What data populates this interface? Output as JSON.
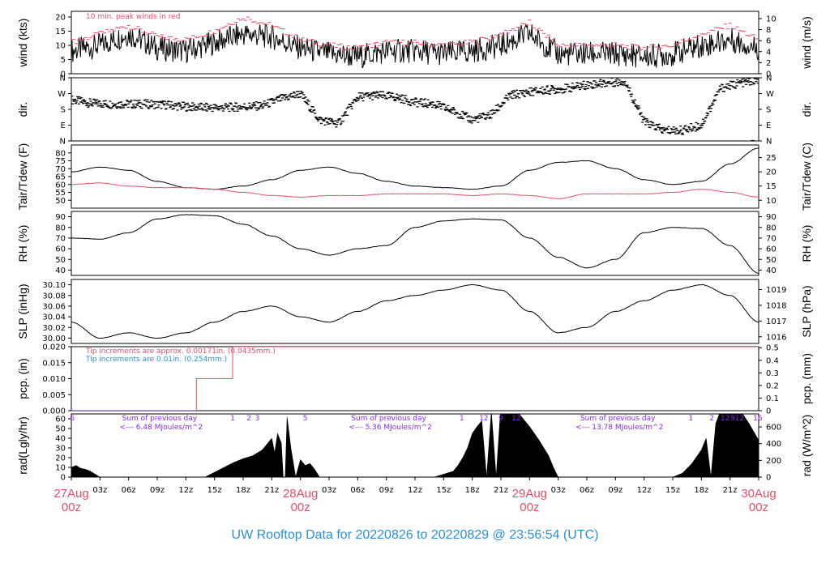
{
  "title": "UW Rooftop Data for 20220826  to  20220829 @ 23:56:54  (UTC)",
  "colors": {
    "title": "#2a8fd6",
    "date": "#e0506a",
    "red": "#e0506a",
    "purple": "#8a2be2",
    "blue": "#2a8fd6"
  },
  "time_axis": {
    "hour_ticks": [
      "03z",
      "06z",
      "09z",
      "12z",
      "15z",
      "18z",
      "21z"
    ],
    "days": [
      {
        "day": "27Aug",
        "hour": "00z",
        "t": 0
      },
      {
        "day": "28Aug",
        "hour": "00z",
        "t": 24
      },
      {
        "day": "29Aug",
        "hour": "00z",
        "t": 48
      },
      {
        "day": "30Aug",
        "hour": "00z",
        "t": 72
      }
    ]
  },
  "chart_data": [
    {
      "id": "wind",
      "type": "line",
      "ylabel": "wind (kts)",
      "y2label": "wind (m/s)",
      "ylim": [
        0,
        22
      ],
      "yticks": [
        0,
        5,
        10,
        15,
        20
      ],
      "y2ticks": [
        0,
        2,
        4,
        6,
        8,
        10
      ],
      "y2scale": 0.5144,
      "note": "10 min. peak winds in red",
      "series": [
        {
          "name": "wind",
          "color": "#000000",
          "x": [
            0,
            3,
            6,
            9,
            12,
            15,
            18,
            21,
            24,
            27,
            30,
            33,
            36,
            39,
            42,
            45,
            48,
            51,
            54,
            57,
            60,
            63,
            66,
            69,
            72
          ],
          "y": [
            8,
            10,
            14,
            9,
            8,
            11,
            14,
            13,
            9,
            7,
            6,
            8,
            8,
            7,
            8,
            10,
            14,
            7,
            7,
            7,
            6,
            7,
            10,
            12,
            9
          ]
        },
        {
          "name": "peak",
          "color": "#e0506a",
          "x": [
            0,
            3,
            6,
            9,
            12,
            15,
            18,
            21,
            24,
            27,
            30,
            33,
            36,
            39,
            42,
            45,
            48,
            51,
            54,
            57,
            60,
            63,
            66,
            69,
            72
          ],
          "y": [
            11,
            14,
            17,
            13,
            12,
            15,
            20,
            17,
            12,
            10,
            9,
            11,
            11,
            10,
            11,
            14,
            18,
            10,
            10,
            10,
            9,
            10,
            14,
            17,
            12
          ]
        }
      ]
    },
    {
      "id": "dir",
      "type": "scatter",
      "ylabel": "dir.",
      "y2label": "dir.",
      "ylim": [
        0,
        360
      ],
      "yticks": [
        0,
        90,
        180,
        270,
        360
      ],
      "yticklabels": [
        "N",
        "E",
        "S",
        "W",
        "N"
      ],
      "series": [
        {
          "name": "dir",
          "color": "#000000",
          "x": [
            0,
            2,
            4,
            6,
            8,
            10,
            12,
            14,
            16,
            18,
            20,
            22,
            24,
            26,
            28,
            30,
            32,
            34,
            36,
            38,
            40,
            42,
            44,
            46,
            48,
            50,
            52,
            54,
            56,
            58,
            60,
            62,
            64,
            66,
            68,
            70,
            72
          ],
          "y": [
            235,
            215,
            210,
            210,
            210,
            205,
            195,
            190,
            190,
            195,
            200,
            240,
            270,
            120,
            100,
            250,
            260,
            250,
            220,
            210,
            170,
            120,
            150,
            260,
            280,
            290,
            300,
            320,
            330,
            340,
            110,
            60,
            60,
            90,
            300,
            330,
            345
          ]
        }
      ]
    },
    {
      "id": "temp",
      "type": "line",
      "ylabel": "Tair/Tdew (F)",
      "y2label": "Tair/Tdew (C)",
      "ylim": [
        45,
        85
      ],
      "yticks": [
        50,
        55,
        60,
        65,
        70,
        75,
        80
      ],
      "y2ticks": [
        10,
        15,
        20,
        25
      ],
      "series": [
        {
          "name": "Tair",
          "color": "#000000",
          "x": [
            0,
            3,
            6,
            9,
            12,
            15,
            18,
            21,
            24,
            27,
            30,
            33,
            36,
            39,
            42,
            45,
            48,
            51,
            54,
            57,
            60,
            63,
            66,
            69,
            72
          ],
          "y": [
            68,
            71,
            69,
            62,
            58,
            57,
            59,
            63,
            69,
            71,
            67,
            62,
            59,
            58,
            57,
            59,
            69,
            74,
            75,
            70,
            63,
            60,
            62,
            73,
            83
          ]
        },
        {
          "name": "Tdew",
          "color": "#e0506a",
          "x": [
            0,
            3,
            6,
            9,
            12,
            15,
            18,
            21,
            24,
            27,
            30,
            33,
            36,
            39,
            42,
            45,
            48,
            51,
            54,
            57,
            60,
            63,
            66,
            69,
            72
          ],
          "y": [
            60,
            61,
            59,
            58,
            58,
            57,
            55,
            53,
            52,
            53,
            53,
            54,
            54,
            54,
            53,
            54,
            53,
            51,
            54,
            54,
            54,
            55,
            57,
            55,
            52
          ]
        }
      ]
    },
    {
      "id": "rh",
      "type": "line",
      "ylabel": "RH (%)",
      "y2label": "RH (%)",
      "ylim": [
        35,
        95
      ],
      "yticks": [
        40,
        50,
        60,
        70,
        80,
        90
      ],
      "y2ticks": [
        40,
        50,
        60,
        70,
        80,
        90
      ],
      "series": [
        {
          "name": "RH",
          "color": "#000000",
          "x": [
            0,
            3,
            6,
            9,
            12,
            15,
            18,
            21,
            24,
            27,
            30,
            33,
            36,
            39,
            42,
            45,
            48,
            51,
            54,
            57,
            60,
            63,
            66,
            69,
            72
          ],
          "y": [
            70,
            69,
            75,
            88,
            92,
            91,
            83,
            72,
            60,
            54,
            60,
            63,
            80,
            86,
            88,
            87,
            70,
            52,
            42,
            50,
            75,
            80,
            79,
            63,
            37
          ]
        }
      ]
    },
    {
      "id": "slp",
      "type": "line",
      "ylabel": "SLP (inHg)",
      "y2label": "SLP (hPa)",
      "ylim": [
        29.99,
        30.11
      ],
      "yticks": [
        30.0,
        30.02,
        30.04,
        30.06,
        30.08,
        30.1
      ],
      "yticklabels": [
        "30.00",
        "30.02",
        "30.04",
        "30.06",
        "30.08",
        "30.10"
      ],
      "y2ticks": [
        1016,
        1017,
        1018,
        1019
      ],
      "series": [
        {
          "name": "SLP",
          "color": "#000000",
          "x": [
            0,
            3,
            6,
            9,
            12,
            15,
            18,
            21,
            24,
            27,
            30,
            33,
            36,
            39,
            42,
            45,
            48,
            51,
            54,
            57,
            60,
            63,
            66,
            69,
            72
          ],
          "y": [
            30.03,
            30.0,
            30.01,
            30.0,
            30.01,
            30.03,
            30.05,
            30.06,
            30.04,
            30.03,
            30.05,
            30.07,
            30.08,
            30.09,
            30.1,
            30.09,
            30.05,
            30.01,
            30.02,
            30.05,
            30.07,
            30.09,
            30.1,
            30.08,
            30.03
          ]
        }
      ]
    },
    {
      "id": "pcp",
      "type": "line",
      "ylabel": "pcp. (in)",
      "y2label": "pcp. (mm)",
      "ylim": [
        0,
        0.02
      ],
      "yticks": [
        0,
        0.005,
        0.01,
        0.015,
        0.02
      ],
      "yticklabels": [
        "0.000",
        "0.005",
        "0.010",
        "0.015",
        "0.020"
      ],
      "y2ticks": [
        0,
        0.1,
        0.2,
        0.3,
        0.4,
        0.5
      ],
      "notes": [
        {
          "text": "Tip increments are approx. 0.00171in. (0.0435mm.)",
          "color": "#e0506a"
        },
        {
          "text": "Tip increments are 0.01in. (0.254mm.)",
          "color": "#2a8fd6"
        }
      ],
      "series": [
        {
          "name": "pcp-red",
          "color": "#e0506a",
          "x": [
            0,
            13.1,
            13.1,
            16.9,
            16.9,
            72
          ],
          "y": [
            0,
            0,
            0.01,
            0.01,
            0.02,
            0.02
          ]
        },
        {
          "name": "pcp-blue",
          "color": "#8a2be2",
          "x": [
            0,
            13.1
          ],
          "y": [
            0,
            0
          ]
        }
      ]
    },
    {
      "id": "rad",
      "type": "area",
      "ylabel": "rad(Lgly/hr)",
      "y2label": "rad (W/m^2)",
      "ylim": [
        0,
        65
      ],
      "yticks": [
        0,
        10,
        20,
        30,
        40,
        50,
        60
      ],
      "y2ticks": [
        0,
        200,
        400,
        600
      ],
      "y2scale": 11.63,
      "labels": [
        {
          "text": "Sum of previous day",
          "sub": "<--- 6.48 MJoules/m^2",
          "t": 5
        },
        {
          "text": "Sum of previous day",
          "sub": "<--- 5.36 MJoules/m^2",
          "t": 29
        },
        {
          "text": "Sum of previous day",
          "sub": "<--- 13.78 MJoules/m^2",
          "t": 53
        }
      ],
      "top_numbers": [
        {
          "text": "6",
          "t": 0.1
        },
        {
          "text": "1",
          "t": 16.9
        },
        {
          "text": "2",
          "t": 18.6
        },
        {
          "text": "3",
          "t": 19.5
        },
        {
          "text": "5",
          "t": 24.5
        },
        {
          "text": "1",
          "t": 40.9
        },
        {
          "text": "12",
          "t": 43.2
        },
        {
          "text": "9",
          "t": 45.0
        },
        {
          "text": "12",
          "t": 46.6
        },
        {
          "text": "1",
          "t": 64.9
        },
        {
          "text": "2",
          "t": 67.1
        },
        {
          "text": "12",
          "t": 68.5
        },
        {
          "text": "9",
          "t": 69.3
        },
        {
          "text": "12",
          "t": 70.0
        },
        {
          "text": "16",
          "t": 71.9
        }
      ],
      "series": [
        {
          "name": "rad",
          "color": "#000000",
          "x": [
            0,
            0.5,
            1,
            1.5,
            2,
            2.5,
            3,
            14,
            15,
            16,
            17,
            18,
            19,
            20,
            20.5,
            21,
            21.3,
            21.6,
            22,
            22.2,
            22.4,
            22.6,
            23,
            23.5,
            24,
            24.5,
            25,
            25.5,
            26,
            38,
            39,
            40,
            40.5,
            41,
            41.5,
            42,
            42.5,
            43,
            43.5,
            44,
            44.5,
            45,
            46,
            47,
            48,
            49,
            50,
            50.5,
            51,
            51.5,
            52,
            63,
            64,
            65,
            66,
            66.5,
            67,
            67.5,
            68,
            69,
            70,
            71,
            72
          ],
          "y": [
            10,
            12,
            9,
            8,
            6,
            3,
            0,
            0,
            5,
            10,
            15,
            19,
            22,
            28,
            34,
            40,
            25,
            45,
            35,
            0,
            0,
            62,
            30,
            0,
            18,
            12,
            14,
            8,
            0,
            0,
            3,
            6,
            12,
            20,
            30,
            45,
            52,
            58,
            0,
            68,
            0,
            75,
            72,
            64,
            52,
            38,
            22,
            10,
            0,
            0,
            0,
            0,
            4,
            14,
            28,
            40,
            0,
            55,
            68,
            75,
            70,
            55,
            38
          ]
        }
      ]
    }
  ]
}
